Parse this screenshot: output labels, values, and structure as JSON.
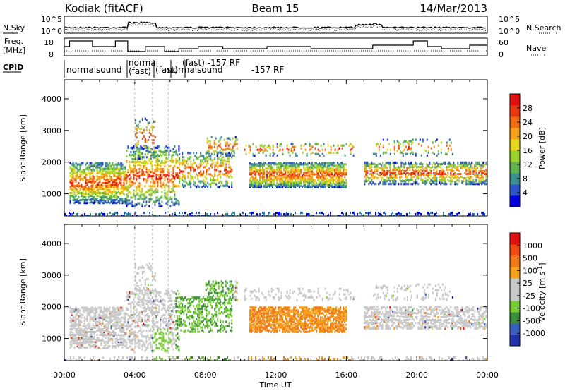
{
  "header": {
    "station": "Kodiak (fitACF)",
    "beam": "Beam 15",
    "date": "14/Mar/2013"
  },
  "panels": {
    "nsky": {
      "left_label": "N.Sky",
      "right_label": "N.Search",
      "left_ticks": [
        "10^5",
        "10^0"
      ],
      "right_ticks": [
        "10^5",
        "10^0"
      ]
    },
    "freq": {
      "left_label_1": "Freq.",
      "left_label_2": "[MHz]",
      "right_label": "Nave",
      "left_ticks": [
        "18",
        "8"
      ],
      "right_ticks": [
        "60",
        "0"
      ]
    },
    "cpid": {
      "label": "CPID",
      "modes": [
        "normalsound",
        "normal",
        "(fast)",
        "(fast)",
        "normalsound",
        "(fast) -157 RF",
        "-157 RF"
      ]
    }
  },
  "chart_data": [
    {
      "type": "heatmap",
      "title": "Power",
      "xlabel": "Time UT",
      "ylabel": "Slant Range [km]",
      "x_ticks": [
        "00:00",
        "04:00",
        "08:00",
        "12:00",
        "16:00",
        "20:00",
        "00:00"
      ],
      "y_ticks": [
        "1000",
        "2000",
        "3000",
        "4000"
      ],
      "ylim": [
        300,
        4600
      ],
      "colorbar": {
        "label": "Power [dB]",
        "ticks": [
          "28",
          "24",
          "20",
          "16",
          "12",
          "8",
          "4"
        ],
        "colors": [
          "#0000e0",
          "#2f56c8",
          "#3b8f8c",
          "#5fb04e",
          "#9ad12b",
          "#e6d51c",
          "#f4a21a",
          "#f06c12",
          "#e83a10",
          "#e01010"
        ]
      }
    },
    {
      "type": "heatmap",
      "title": "Velocity",
      "xlabel": "Time UT",
      "ylabel": "Slant Range [km]",
      "x_ticks": [
        "00:00",
        "04:00",
        "08:00",
        "12:00",
        "16:00",
        "20:00",
        "00:00"
      ],
      "y_ticks": [
        "1000",
        "2000",
        "3000",
        "4000"
      ],
      "ylim": [
        300,
        4600
      ],
      "colorbar": {
        "label": "Velocity [m s",
        "label_exp": "-1",
        "label_end": "]",
        "ticks": [
          "1000",
          "500",
          "100",
          "25",
          "-25",
          "-100",
          "-500",
          "-1000"
        ],
        "colors": [
          "#2233aa",
          "#3a5fbf",
          "#3c8c3c",
          "#77cc33",
          "#c8c8c8",
          "#c8c8c8",
          "#f4a21a",
          "#f07818",
          "#ee4a12",
          "#e01010"
        ]
      }
    }
  ],
  "x_axis_title": "Time UT"
}
